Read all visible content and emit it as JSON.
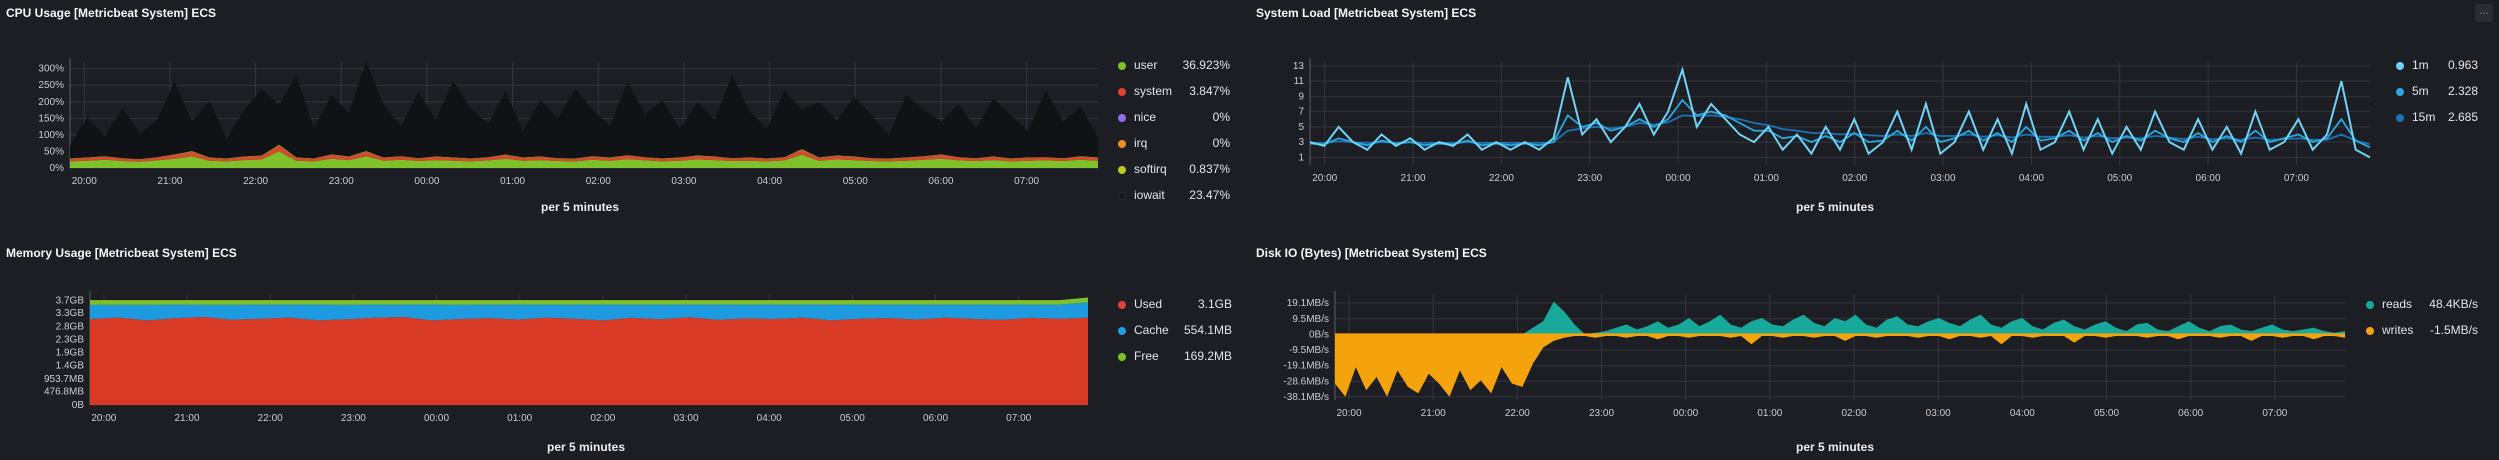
{
  "corner_menu_icon": "options-icon",
  "panels": {
    "cpu": {
      "title": "CPU Usage [Metricbeat System] ECS",
      "xlabel": "per 5 minutes",
      "yticks": [
        "300%",
        "250%",
        "200%",
        "150%",
        "100%",
        "50%",
        "0%"
      ],
      "xticks": [
        "20:00",
        "21:00",
        "22:00",
        "23:00",
        "00:00",
        "01:00",
        "02:00",
        "03:00",
        "04:00",
        "05:00",
        "06:00",
        "07:00"
      ],
      "legend": [
        {
          "label": "user",
          "value": "36.923%",
          "color": "#7ec12b"
        },
        {
          "label": "system",
          "value": "3.847%",
          "color": "#e0423a"
        },
        {
          "label": "nice",
          "value": "0%",
          "color": "#9170e6"
        },
        {
          "label": "irq",
          "value": "0%",
          "color": "#f08d26"
        },
        {
          "label": "softirq",
          "value": "0.837%",
          "color": "#b9cc1f"
        },
        {
          "label": "iowait",
          "value": "23.47%",
          "color": "#141518"
        }
      ]
    },
    "load": {
      "title": "System Load [Metricbeat System] ECS",
      "xlabel": "per 5 minutes",
      "yticks": [
        "13",
        "11",
        "9",
        "7",
        "5",
        "3",
        "1"
      ],
      "xticks": [
        "20:00",
        "21:00",
        "22:00",
        "23:00",
        "00:00",
        "01:00",
        "02:00",
        "03:00",
        "04:00",
        "05:00",
        "06:00",
        "07:00"
      ],
      "legend": [
        {
          "label": "1m",
          "value": "0.963",
          "color": "#6fd3f5"
        },
        {
          "label": "5m",
          "value": "2.328",
          "color": "#2aa7dd"
        },
        {
          "label": "15m",
          "value": "2.685",
          "color": "#1b72b5"
        }
      ]
    },
    "memory": {
      "title": "Memory Usage [Metricbeat System] ECS",
      "xlabel": "per 5 minutes",
      "yticks": [
        "3.7GB",
        "3.3GB",
        "2.8GB",
        "2.3GB",
        "1.9GB",
        "1.4GB",
        "953.7MB",
        "476.8MB",
        "0B"
      ],
      "xticks": [
        "20:00",
        "21:00",
        "22:00",
        "23:00",
        "00:00",
        "01:00",
        "02:00",
        "03:00",
        "04:00",
        "05:00",
        "06:00",
        "07:00"
      ],
      "legend": [
        {
          "label": "Used",
          "value": "3.1GB",
          "color": "#e0423a"
        },
        {
          "label": "Cache",
          "value": "554.1MB",
          "color": "#1ea0e0"
        },
        {
          "label": "Free",
          "value": "169.2MB",
          "color": "#7ec12b"
        }
      ]
    },
    "disk": {
      "title": "Disk IO (Bytes) [Metricbeat System] ECS",
      "xlabel": "per 5 minutes",
      "yticks": [
        "19.1MB/s",
        "9.5MB/s",
        "0B/s",
        "-9.5MB/s",
        "-19.1MB/s",
        "-28.6MB/s",
        "-38.1MB/s"
      ],
      "xticks": [
        "20:00",
        "21:00",
        "22:00",
        "23:00",
        "00:00",
        "01:00",
        "02:00",
        "03:00",
        "04:00",
        "05:00",
        "06:00",
        "07:00"
      ],
      "legend": [
        {
          "label": "reads",
          "value": "48.4KB/s",
          "color": "#17a99b"
        },
        {
          "label": "writes",
          "value": "-1.5MB/s",
          "color": "#f5a30c"
        }
      ]
    }
  },
  "chart_data": [
    {
      "type": "area",
      "title": "CPU Usage [Metricbeat System] ECS",
      "xlabel": "per 5 minutes",
      "ylim": [
        0,
        320
      ],
      "x_range": [
        "19:50",
        "07:50"
      ],
      "stacked": true,
      "series": [
        {
          "name": "user",
          "values": [
            20,
            22,
            25,
            21,
            19,
            23,
            28,
            35,
            22,
            20,
            24,
            26,
            50,
            22,
            20,
            28,
            24,
            35,
            22,
            25,
            21,
            24,
            22,
            20,
            23,
            28,
            22,
            24,
            21,
            20,
            25,
            22,
            27,
            23,
            20,
            22,
            26,
            24,
            21,
            22,
            20,
            23,
            40,
            22,
            26,
            24,
            21,
            20,
            22,
            25,
            28,
            23,
            21,
            24,
            20,
            22,
            23,
            21,
            25,
            22
          ]
        },
        {
          "name": "system",
          "values": [
            8,
            9,
            10,
            8,
            7,
            9,
            12,
            14,
            9,
            8,
            10,
            11,
            18,
            9,
            8,
            12,
            10,
            14,
            9,
            10,
            8,
            10,
            9,
            8,
            9,
            12,
            9,
            10,
            8,
            8,
            10,
            9,
            11,
            9,
            8,
            9,
            11,
            10,
            8,
            9,
            8,
            9,
            15,
            9,
            11,
            10,
            8,
            8,
            9,
            10,
            12,
            9,
            8,
            10,
            8,
            9,
            9,
            8,
            10,
            9
          ]
        },
        {
          "name": "softirq",
          "values": [
            1,
            1,
            1,
            1,
            1,
            1,
            1,
            2,
            1,
            1,
            1,
            1,
            2,
            1,
            1,
            1,
            1,
            2,
            1,
            1,
            1,
            1,
            1,
            1,
            1,
            1,
            1,
            1,
            1,
            1,
            1,
            1,
            1,
            1,
            1,
            1,
            1,
            1,
            1,
            1,
            1,
            1,
            2,
            1,
            1,
            1,
            1,
            1,
            1,
            1,
            1,
            1,
            1,
            1,
            1,
            1,
            1,
            1,
            1,
            1
          ]
        },
        {
          "name": "iowait",
          "values": [
            40,
            120,
            60,
            150,
            80,
            110,
            220,
            90,
            170,
            60,
            140,
            200,
            120,
            250,
            90,
            180,
            130,
            270,
            160,
            90,
            200,
            110,
            230,
            150,
            100,
            190,
            80,
            170,
            120,
            210,
            140,
            95,
            220,
            130,
            175,
            85,
            160,
            110,
            250,
            140,
            90,
            200,
            120,
            165,
            105,
            180,
            130,
            70,
            190,
            140,
            100,
            160,
            90,
            175,
            130,
            80,
            200,
            110,
            150,
            60
          ]
        }
      ]
    },
    {
      "type": "line",
      "title": "System Load [Metricbeat System] ECS",
      "xlabel": "per 5 minutes",
      "ylim": [
        0,
        13.5
      ],
      "x_range": [
        "19:50",
        "07:50"
      ],
      "series": [
        {
          "name": "1m",
          "values": [
            3,
            2.5,
            5,
            3,
            2,
            4,
            2.5,
            3.5,
            2,
            3,
            2.5,
            4,
            2,
            3,
            2,
            3,
            2,
            3.5,
            11.5,
            4,
            6,
            3,
            5,
            8,
            4,
            7,
            12.5,
            5,
            8,
            6,
            4,
            3,
            5,
            2,
            4,
            1.5,
            5,
            2,
            6,
            1.5,
            3,
            7,
            2,
            8,
            1.5,
            3,
            7,
            2,
            6,
            1.5,
            8,
            2,
            3,
            7,
            2,
            6,
            1.5,
            5,
            2,
            7,
            3,
            2,
            6,
            2,
            5,
            1.5,
            7,
            2,
            3,
            6,
            2,
            4,
            11,
            2,
            1
          ]
        },
        {
          "name": "5m",
          "values": [
            2.8,
            2.7,
            3.5,
            3,
            2.6,
            3.2,
            2.8,
            3,
            2.6,
            2.8,
            2.7,
            3.2,
            2.6,
            2.8,
            2.6,
            2.8,
            2.6,
            3,
            6.5,
            5,
            5.5,
            4.5,
            5,
            6,
            5,
            6,
            8.5,
            6.5,
            7,
            6.5,
            5.5,
            4.5,
            4.5,
            3.5,
            3.8,
            3,
            3.8,
            3,
            4.2,
            3,
            3.2,
            4.5,
            3.2,
            5,
            3,
            3.5,
            4.5,
            3.2,
            4.2,
            3,
            5,
            3.2,
            3.5,
            4.5,
            3.2,
            4.2,
            3,
            3.8,
            3.2,
            4.5,
            3.5,
            3,
            4.2,
            3,
            3.8,
            3,
            4.5,
            3,
            3.5,
            4,
            3,
            3.5,
            6,
            3.2,
            2.3
          ]
        },
        {
          "name": "15m",
          "values": [
            2.9,
            2.9,
            3.1,
            3,
            2.9,
            3,
            2.9,
            3,
            2.9,
            2.9,
            2.9,
            3,
            2.9,
            2.9,
            2.9,
            2.9,
            2.9,
            3,
            4.5,
            4.8,
            5,
            4.8,
            5,
            5.5,
            5.3,
            5.6,
            6.5,
            6.4,
            6.5,
            6.3,
            6,
            5.5,
            5.2,
            4.7,
            4.5,
            4.2,
            4.2,
            4,
            4.1,
            3.9,
            3.8,
            4,
            3.8,
            4.2,
            3.8,
            3.8,
            4,
            3.7,
            3.9,
            3.6,
            4,
            3.7,
            3.7,
            3.9,
            3.6,
            3.8,
            3.5,
            3.6,
            3.5,
            3.8,
            3.6,
            3.4,
            3.7,
            3.4,
            3.5,
            3.3,
            3.6,
            3.3,
            3.4,
            3.5,
            3.3,
            3.3,
            4,
            3.2,
            2.7
          ]
        }
      ]
    },
    {
      "type": "area",
      "title": "Memory Usage [Metricbeat System] ECS",
      "xlabel": "per 5 minutes",
      "ylim": [
        0,
        3.9
      ],
      "unit": "GB",
      "x_range": [
        "19:50",
        "07:50"
      ],
      "stacked": true,
      "series": [
        {
          "name": "Used",
          "values": [
            3.05,
            3.1,
            3.0,
            3.08,
            3.12,
            3.02,
            3.06,
            3.1,
            3.0,
            3.04,
            3.09,
            3.12,
            3.0,
            3.05,
            3.08,
            3.03,
            3.1,
            3.06,
            3.0,
            3.09,
            3.04,
            3.11,
            3.02,
            3.07,
            3.05,
            3.1,
            3.0,
            3.06,
            3.08,
            3.03,
            3.1,
            3.05,
            3.02,
            3.09,
            3.06,
            3.1
          ]
        },
        {
          "name": "Cache",
          "values": [
            0.5,
            0.45,
            0.55,
            0.48,
            0.43,
            0.53,
            0.5,
            0.46,
            0.56,
            0.51,
            0.47,
            0.44,
            0.56,
            0.5,
            0.48,
            0.53,
            0.46,
            0.5,
            0.56,
            0.47,
            0.52,
            0.45,
            0.54,
            0.49,
            0.51,
            0.46,
            0.56,
            0.5,
            0.48,
            0.53,
            0.46,
            0.51,
            0.54,
            0.47,
            0.5,
            0.54
          ]
        },
        {
          "name": "Free",
          "values": [
            0.17,
            0.17,
            0.17,
            0.16,
            0.17,
            0.17,
            0.16,
            0.16,
            0.16,
            0.17,
            0.16,
            0.16,
            0.16,
            0.17,
            0.16,
            0.16,
            0.16,
            0.16,
            0.16,
            0.16,
            0.16,
            0.16,
            0.16,
            0.16,
            0.16,
            0.16,
            0.16,
            0.16,
            0.16,
            0.16,
            0.16,
            0.16,
            0.16,
            0.16,
            0.16,
            0.17
          ]
        }
      ]
    },
    {
      "type": "area",
      "title": "Disk IO (Bytes) [Metricbeat System] ECS",
      "xlabel": "per 5 minutes",
      "ylim": [
        -40,
        24
      ],
      "unit": "MB/s",
      "x_range": [
        "19:50",
        "07:50"
      ],
      "series": [
        {
          "name": "reads",
          "values": [
            0,
            0,
            0,
            0,
            0,
            0,
            0,
            0,
            0,
            0,
            0,
            0,
            0,
            0,
            0,
            0,
            0,
            0,
            0,
            4,
            8,
            20,
            14,
            6,
            0,
            1,
            2,
            4,
            6,
            3,
            5,
            8,
            4,
            6,
            10,
            5,
            8,
            12,
            6,
            4,
            8,
            10,
            6,
            5,
            9,
            12,
            7,
            5,
            10,
            8,
            12,
            6,
            4,
            9,
            11,
            6,
            5,
            8,
            10,
            7,
            5,
            9,
            12,
            6,
            4,
            8,
            10,
            5,
            3,
            7,
            9,
            5,
            3,
            6,
            8,
            4,
            2,
            6,
            7,
            3,
            2,
            5,
            8,
            4,
            2,
            5,
            6,
            3,
            2,
            4,
            6,
            3,
            2,
            3,
            4,
            2,
            1,
            2
          ]
        },
        {
          "name": "writes",
          "values": [
            -30,
            -38,
            -20,
            -34,
            -26,
            -38,
            -22,
            -32,
            -36,
            -24,
            -30,
            -38,
            -22,
            -34,
            -28,
            -36,
            -20,
            -30,
            -32,
            -18,
            -8,
            -4,
            -2,
            -1,
            -1,
            -2,
            -1,
            -1,
            -2,
            -1,
            -1,
            -3,
            -1,
            -1,
            -2,
            -1,
            -1,
            -1,
            -2,
            -1,
            -6,
            -1,
            -1,
            -2,
            -1,
            -1,
            -2,
            -1,
            -1,
            -4,
            -1,
            -1,
            -2,
            -1,
            -1,
            -1,
            -2,
            -1,
            -1,
            -3,
            -1,
            -1,
            -2,
            -1,
            -6,
            -1,
            -1,
            -2,
            -1,
            -1,
            -1,
            -5,
            -1,
            -1,
            -2,
            -1,
            -1,
            -1,
            -2,
            -1,
            -1,
            -3,
            -1,
            -1,
            -1,
            -2,
            -1,
            -1,
            -4,
            -1,
            -1,
            -2,
            -1,
            -1,
            -3,
            -1,
            -1,
            -2
          ]
        }
      ]
    }
  ]
}
